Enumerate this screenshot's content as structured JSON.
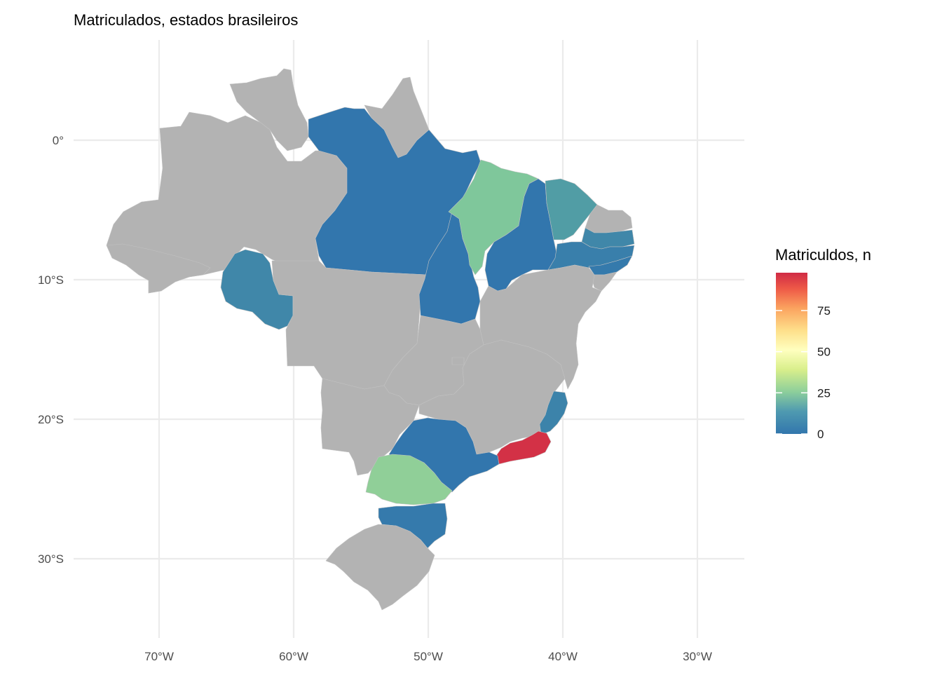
{
  "title": "Matriculados, estados brasileiros",
  "axes": {
    "x_ticks": [
      {
        "label": "70°W",
        "lon": -70
      },
      {
        "label": "60°W",
        "lon": -60
      },
      {
        "label": "50°W",
        "lon": -50
      },
      {
        "label": "40°W",
        "lon": -40
      },
      {
        "label": "30°W",
        "lon": -30
      }
    ],
    "y_ticks": [
      {
        "label": "0°",
        "lat": 0
      },
      {
        "label": "10°S",
        "lat": -10
      },
      {
        "label": "20°S",
        "lat": -20
      },
      {
        "label": "30°S",
        "lat": -30
      }
    ],
    "grid": true
  },
  "legend": {
    "title": "Matriculdos, n",
    "placement": "right",
    "ticks": [
      {
        "label": "0",
        "value": 0
      },
      {
        "label": "25",
        "value": 25
      },
      {
        "label": "50",
        "value": 50
      },
      {
        "label": "75",
        "value": 75
      }
    ],
    "range": [
      0,
      98
    ],
    "colors": [
      "#3276ad",
      "#6abd9e",
      "#c7e890",
      "#ffffbf",
      "#fecb7a",
      "#f98a4f",
      "#d02b45"
    ]
  },
  "chart_data": {
    "type": "choropleth",
    "title": "Matriculados, estados brasileiros",
    "fill_scale": "Spectral (blue low → red high)",
    "na_color": "#b3b3b3",
    "regions": [
      {
        "name": "AC",
        "value": null
      },
      {
        "name": "AM",
        "value": null
      },
      {
        "name": "RR",
        "value": null
      },
      {
        "name": "AP",
        "value": null
      },
      {
        "name": "PA",
        "value": 0
      },
      {
        "name": "RO",
        "value": 4
      },
      {
        "name": "MT",
        "value": null
      },
      {
        "name": "TO",
        "value": 0
      },
      {
        "name": "MA",
        "value": 20
      },
      {
        "name": "PI",
        "value": 0
      },
      {
        "name": "CE",
        "value": 9
      },
      {
        "name": "RN",
        "value": null
      },
      {
        "name": "PB",
        "value": 4
      },
      {
        "name": "PE",
        "value": 2
      },
      {
        "name": "AL",
        "value": 1
      },
      {
        "name": "SE",
        "value": null
      },
      {
        "name": "BA",
        "value": null
      },
      {
        "name": "GO",
        "value": null
      },
      {
        "name": "DF",
        "value": null
      },
      {
        "name": "MG",
        "value": null
      },
      {
        "name": "ES",
        "value": 3
      },
      {
        "name": "RJ",
        "value": 97
      },
      {
        "name": "SP",
        "value": 0
      },
      {
        "name": "MS",
        "value": null
      },
      {
        "name": "PR",
        "value": 23
      },
      {
        "name": "SC",
        "value": 1
      },
      {
        "name": "RS",
        "value": null
      }
    ]
  }
}
